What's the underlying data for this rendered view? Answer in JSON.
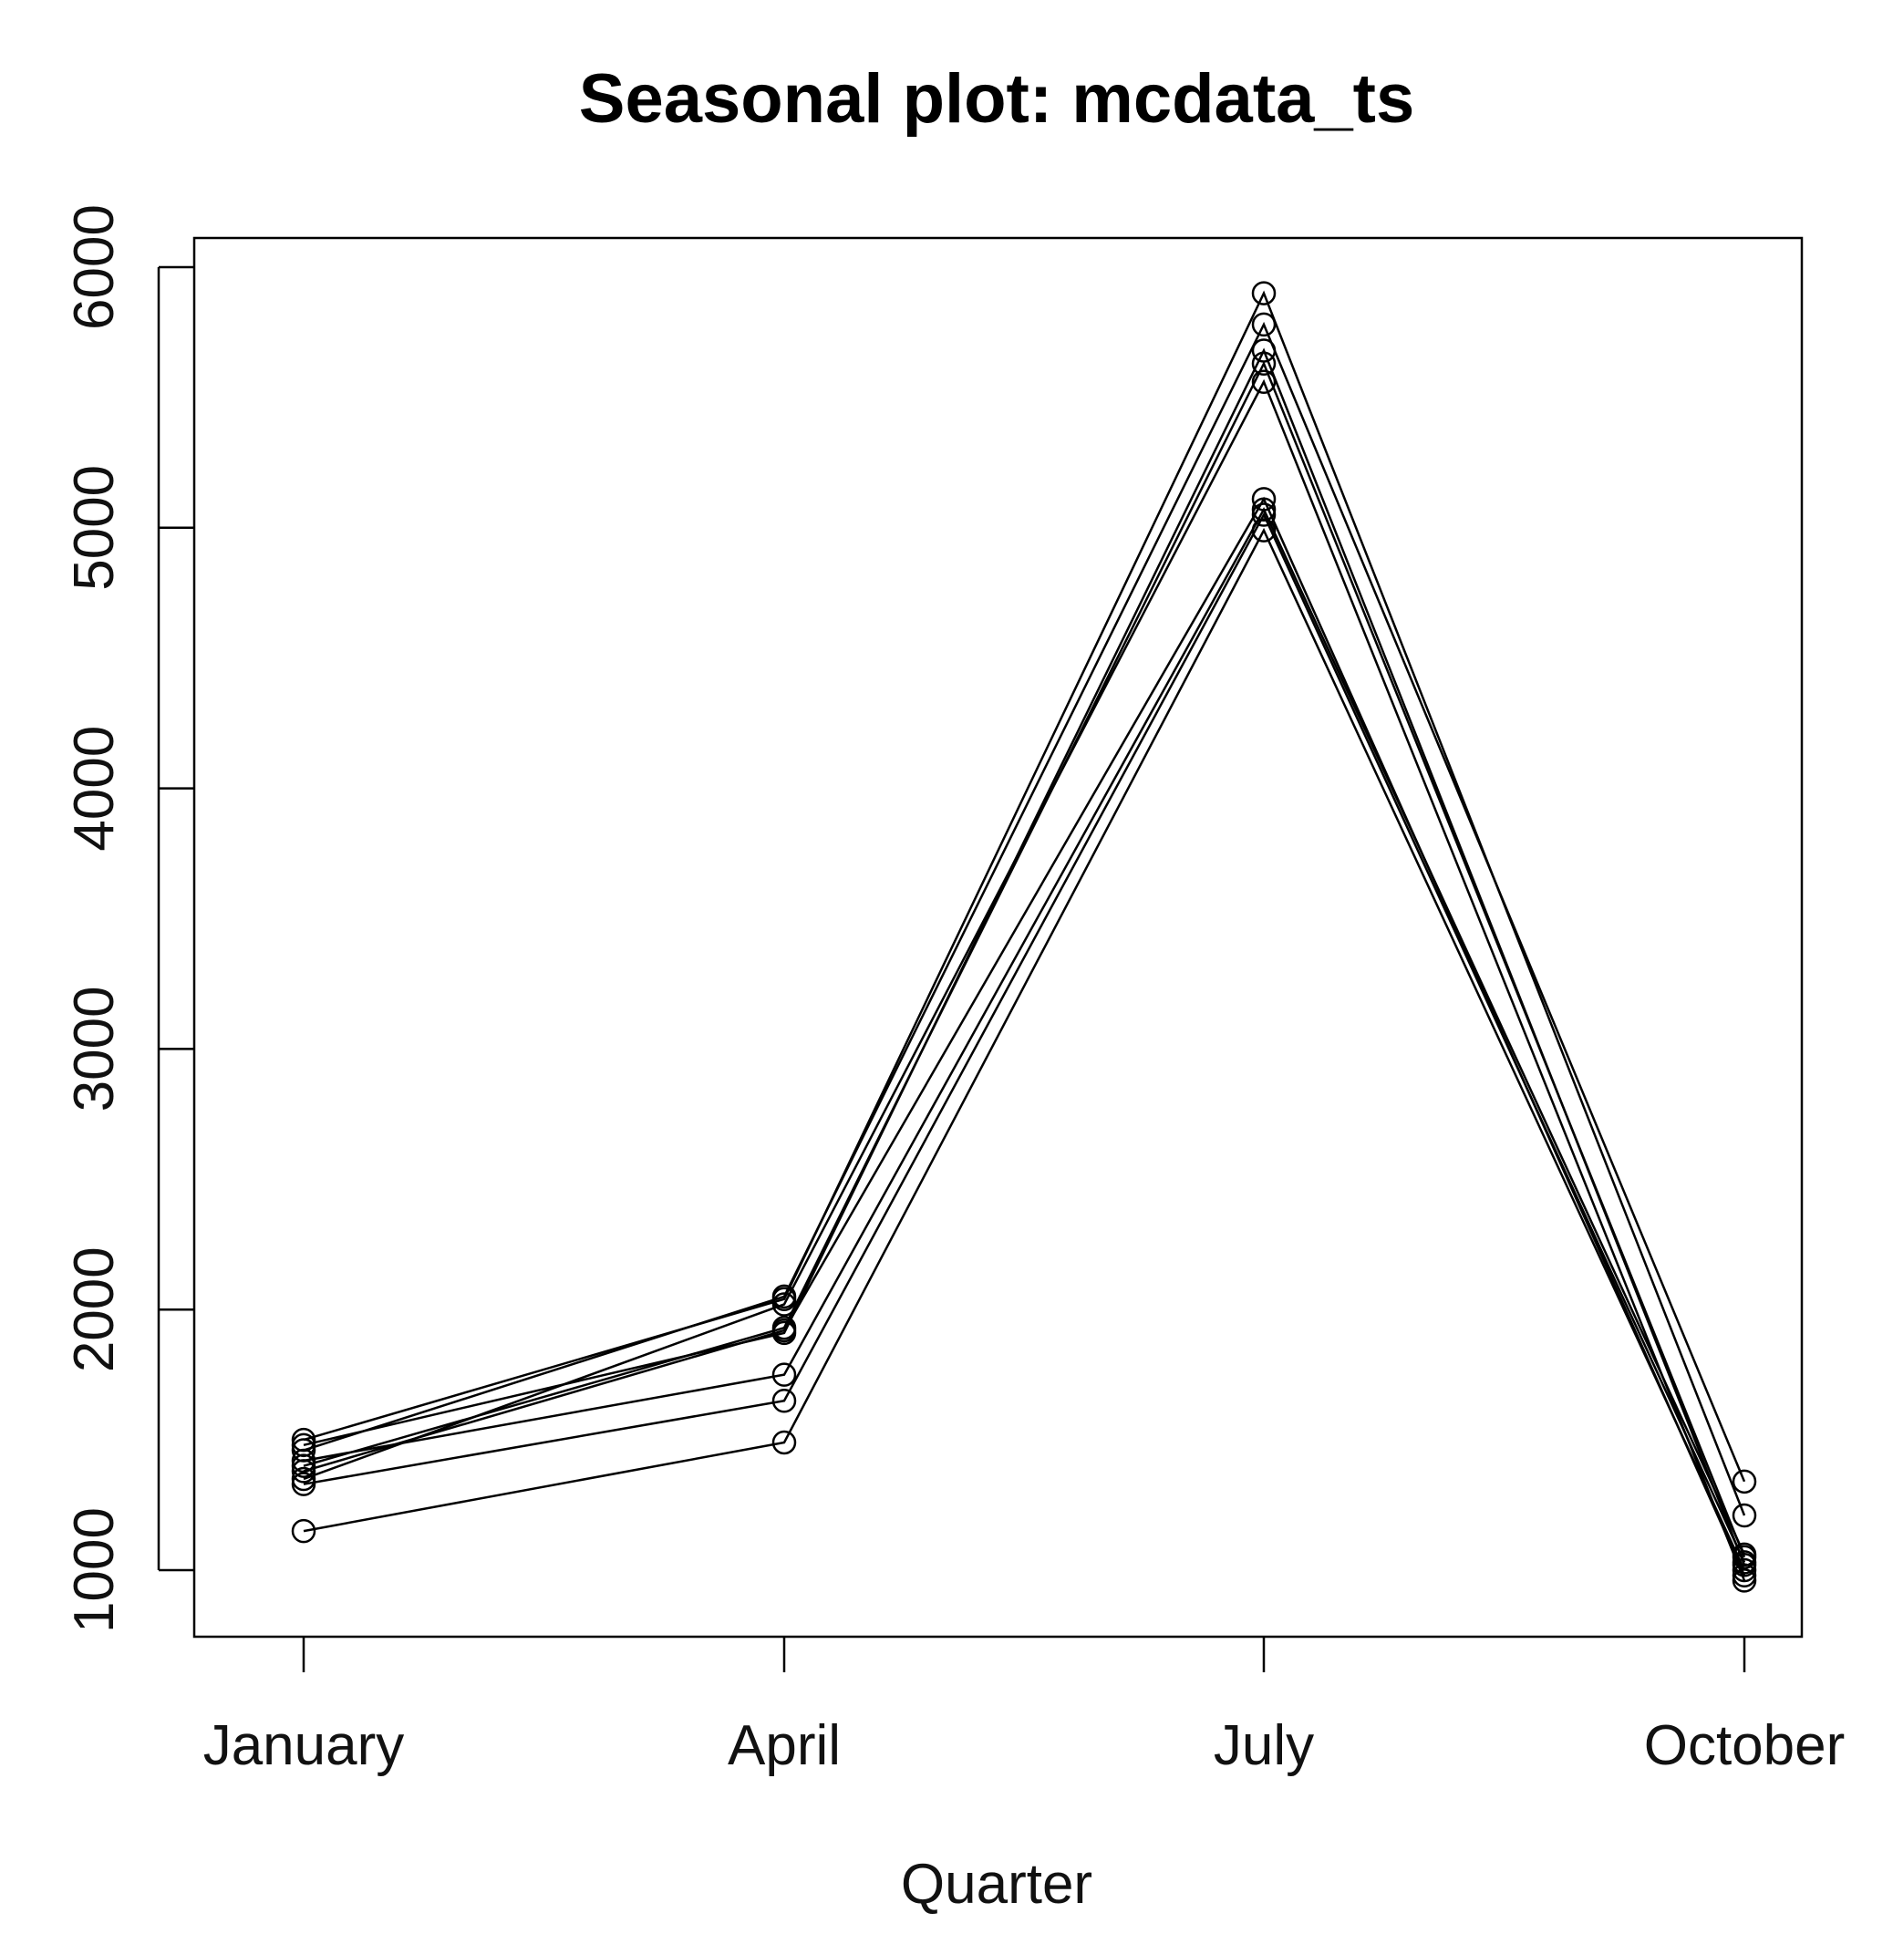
{
  "chart_data": {
    "type": "line",
    "title": "Seasonal plot: mcdata_ts",
    "xlabel": "Quarter",
    "ylabel": "",
    "categories": [
      "January",
      "April",
      "July",
      "October"
    ],
    "y_ticks": [
      "1000",
      "2000",
      "3000",
      "4000",
      "5000",
      "6000"
    ],
    "ylim": [
      750,
      6100
    ],
    "grid": false,
    "marker": "open-circle",
    "line_color": "#000000",
    "series": [
      {
        "values": [
          1150,
          1490,
          4990,
          1000
        ]
      },
      {
        "values": [
          1330,
          1650,
          5050,
          1030
        ]
      },
      {
        "values": [
          1420,
          1750,
          5070,
          1060
        ]
      },
      {
        "values": [
          1380,
          1920,
          5110,
          980
        ]
      },
      {
        "values": [
          1500,
          2040,
          5900,
          1210
        ]
      },
      {
        "values": [
          1460,
          2050,
          5780,
          1340
        ]
      },
      {
        "values": [
          1400,
          1930,
          5630,
          1050
        ]
      },
      {
        "values": [
          1350,
          2020,
          5560,
          960
        ]
      },
      {
        "values": [
          1480,
          1910,
          5680,
          1020
        ]
      }
    ]
  }
}
